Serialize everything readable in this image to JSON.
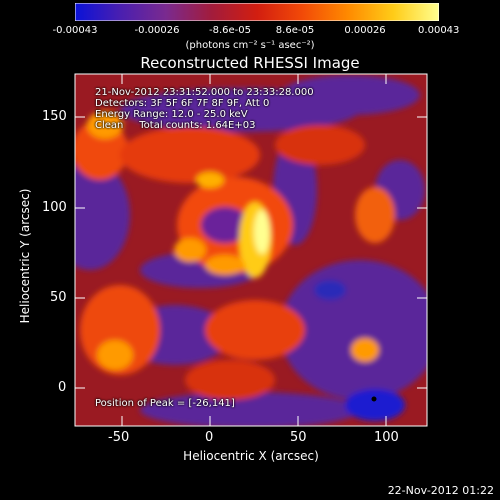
{
  "colorbar": {
    "tick_labels": [
      "-0.00043",
      "-0.00026",
      "-8.6e-05",
      "8.6e-05",
      "0.00026",
      "0.00043"
    ],
    "unit_label": "(photons cm⁻² s⁻¹ asec⁻²)",
    "colors": [
      "#0a12d8",
      "#4a1fb0",
      "#7a2a8f",
      "#a21c3c",
      "#d21e10",
      "#f24a08",
      "#ff8a00",
      "#ffcc18",
      "#ffff90"
    ]
  },
  "title": "Reconstructed RHESSI Image",
  "annotations": {
    "time_range": "21-Nov-2012 23:31:52.000 to 23:33:28.000",
    "detectors": "Detectors: 3F 5F 6F 7F 8F 9F, Att 0",
    "energy_range": "Energy Range: 12.0 - 25.0 keV",
    "clean": "Clean     Total counts: 1.64E+03",
    "peak": "Position of Peak = [-26,141]"
  },
  "axes": {
    "xlabel": "Heliocentric X (arcsec)",
    "ylabel": "Heliocentric Y (arcsec)",
    "xticks": [
      "-50",
      "0",
      "50",
      "100"
    ],
    "yticks": [
      "0",
      "50",
      "100",
      "150"
    ]
  },
  "footer": "22-Nov-2012 01:22"
}
